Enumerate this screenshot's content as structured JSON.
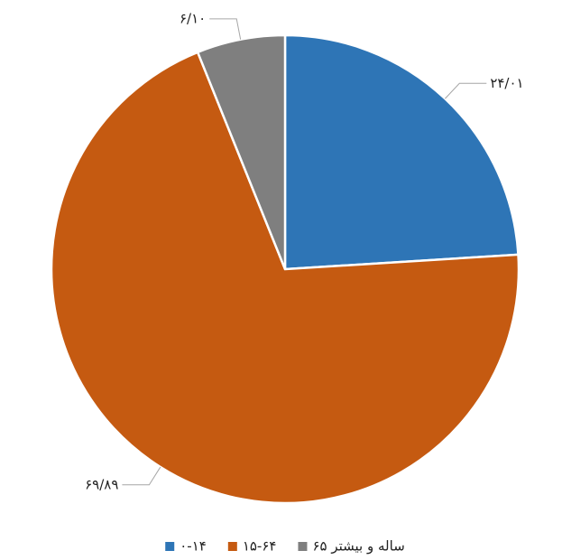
{
  "chart_data": {
    "type": "pie",
    "categories": [
      "۰-۱۴",
      "۱۵-۶۴",
      "۶۵ ساله و بیشتر"
    ],
    "values": [
      24.01,
      69.89,
      6.1
    ],
    "value_labels": [
      "۲۴/۰۱",
      "۶۹/۸۹",
      "۶/۱۰"
    ],
    "colors": [
      "#2e75b6",
      "#c55a11",
      "#7f7f7f"
    ],
    "legend": "bottom"
  }
}
